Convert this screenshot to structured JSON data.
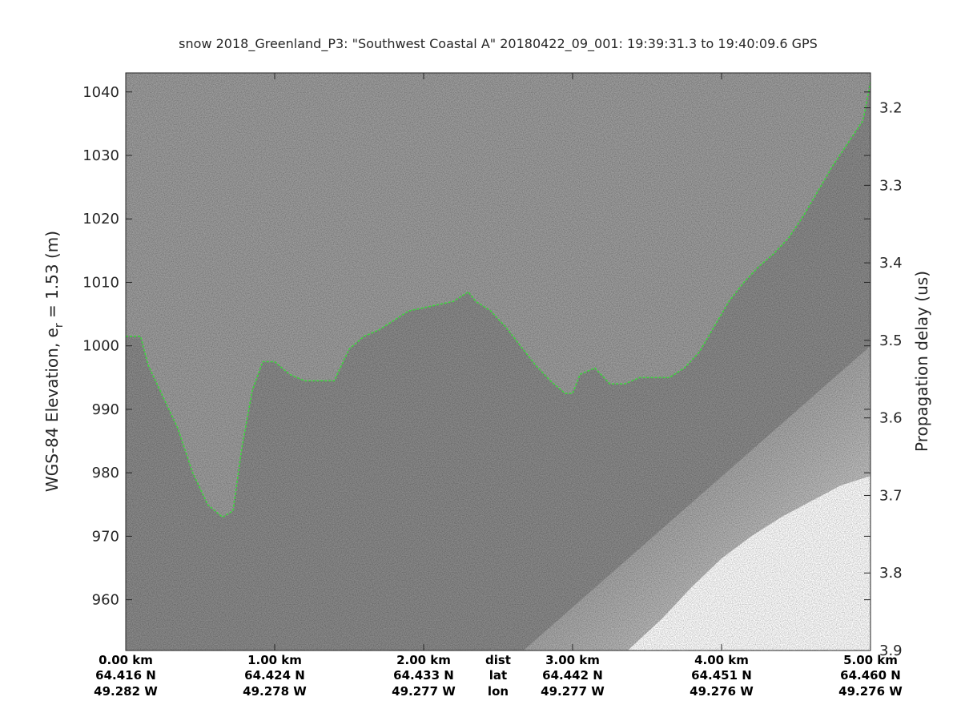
{
  "chart_data": {
    "type": "heatmap",
    "title": "snow 2018_Greenland_P3: \"Southwest Coastal A\"  20180422_09_001: 19:39:31.3 to 19:40:09.6 GPS",
    "ylabel_left_main": "WGS-84 Elevation, e",
    "ylabel_left_sub": "r",
    "ylabel_left_rest": " = 1.53 (m)",
    "ylabel_right": "Propagation delay (us)",
    "ylim": [
      952,
      1043
    ],
    "y2lim": [
      3.155,
      3.9
    ],
    "xlim": [
      0,
      5
    ],
    "grid": false,
    "y_ticks": [
      {
        "value": 960,
        "label": "960"
      },
      {
        "value": 970,
        "label": "970"
      },
      {
        "value": 980,
        "label": "980"
      },
      {
        "value": 990,
        "label": "990"
      },
      {
        "value": 1000,
        "label": "1000"
      },
      {
        "value": 1010,
        "label": "1010"
      },
      {
        "value": 1020,
        "label": "1020"
      },
      {
        "value": 1030,
        "label": "1030"
      },
      {
        "value": 1040,
        "label": "1040"
      }
    ],
    "y2_ticks": [
      {
        "value": 3.2,
        "label": "3.2"
      },
      {
        "value": 3.3,
        "label": "3.3"
      },
      {
        "value": 3.4,
        "label": "3.4"
      },
      {
        "value": 3.5,
        "label": "3.5"
      },
      {
        "value": 3.6,
        "label": "3.6"
      },
      {
        "value": 3.7,
        "label": "3.7"
      },
      {
        "value": 3.8,
        "label": "3.8"
      },
      {
        "value": 3.9,
        "label": "3.9"
      }
    ],
    "x_ticks": [
      {
        "value": 0,
        "dist": "0.00 km",
        "lat": "64.416 N",
        "lon": "49.282 W"
      },
      {
        "value": 1,
        "dist": "1.00 km",
        "lat": "64.424 N",
        "lon": "49.278 W"
      },
      {
        "value": 2,
        "dist": "2.00 km",
        "lat": "64.433 N",
        "lon": "49.277 W"
      },
      {
        "value": 3,
        "dist": "3.00 km",
        "lat": "64.442 N",
        "lon": "49.277 W"
      },
      {
        "value": 4,
        "dist": "4.00 km",
        "lat": "64.451 N",
        "lon": "49.276 W"
      },
      {
        "value": 5,
        "dist": "5.00 km",
        "lat": "64.460 N",
        "lon": "49.276 W"
      }
    ],
    "x_row_labels": {
      "value": 2.5,
      "dist": "dist",
      "lat": "lat",
      "lon": "lon"
    },
    "surface_series": {
      "name": "",
      "color": "#3cd63c",
      "x": [
        0,
        0.1,
        0.15,
        0.25,
        0.35,
        0.45,
        0.55,
        0.65,
        0.72,
        0.78,
        0.85,
        0.92,
        1.0,
        1.1,
        1.2,
        1.3,
        1.4,
        1.5,
        1.6,
        1.7,
        1.8,
        1.9,
        2.0,
        2.1,
        2.2,
        2.3,
        2.35,
        2.45,
        2.55,
        2.65,
        2.75,
        2.85,
        2.95,
        3.0,
        3.05,
        3.15,
        3.25,
        3.35,
        3.45,
        3.55,
        3.65,
        3.75,
        3.85,
        3.95,
        4.05,
        4.15,
        4.25,
        4.35,
        4.45,
        4.55,
        4.65,
        4.75,
        4.85,
        4.95,
        5.0
      ],
      "y": [
        1001.5,
        1001.5,
        997,
        992,
        987,
        980,
        975,
        973,
        974,
        984,
        993,
        997.5,
        997.5,
        995.5,
        994.5,
        994.5,
        994.5,
        999.5,
        1001.5,
        1002.5,
        1004,
        1005.5,
        1006,
        1006.5,
        1007,
        1008.5,
        1007,
        1005.5,
        1003,
        1000,
        997,
        994.5,
        992.5,
        992.5,
        995.5,
        996.5,
        994,
        994,
        995,
        995,
        995,
        996.5,
        999,
        1003,
        1007,
        1010,
        1012.5,
        1014.5,
        1017,
        1020.5,
        1024.5,
        1028.5,
        1032,
        1035.5,
        1041.5
      ]
    },
    "no_data_region_edge": {
      "x": [
        3.37,
        3.6,
        3.8,
        4.0,
        4.2,
        4.4,
        4.6,
        4.8,
        5.0
      ],
      "y": [
        952,
        957,
        962,
        966.5,
        970,
        973,
        975.5,
        978,
        979.5
      ]
    }
  }
}
